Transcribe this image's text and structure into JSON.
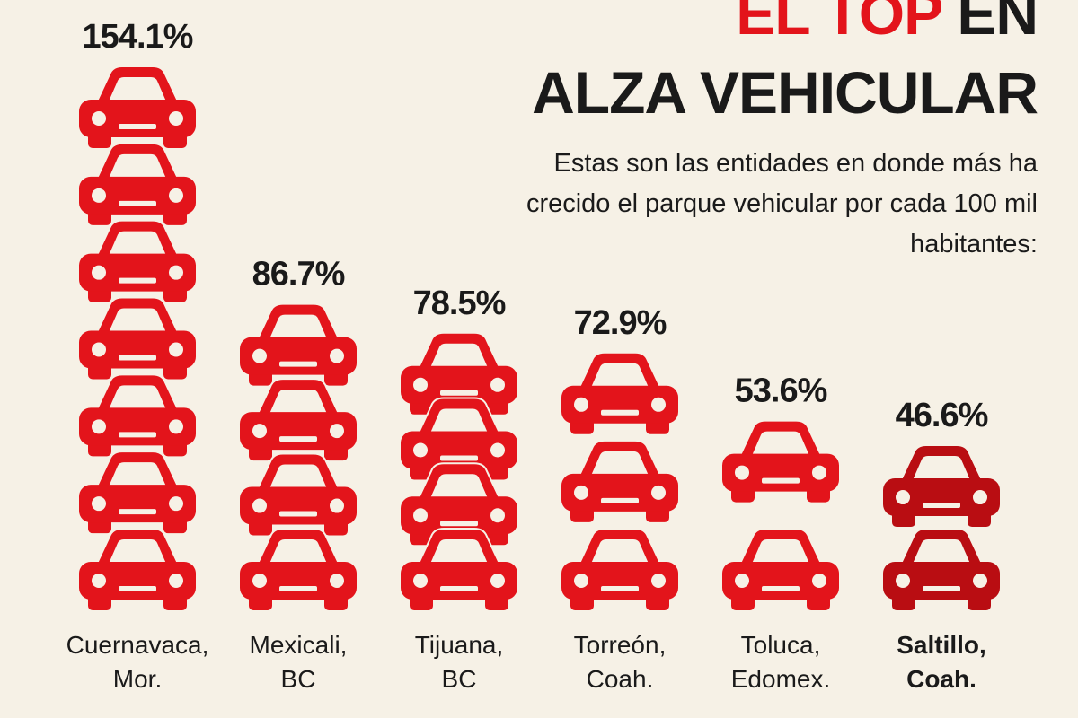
{
  "chart_data": {
    "type": "pictogram",
    "title": [
      "EL TOP",
      "EN",
      "ALZA VEHICULAR"
    ],
    "subtitle": "Estas son las entidades en donde más ha crecido el parque vehicular por cada 100 mil habitantes:",
    "categories": [
      "Cuernavaca,\nMor.",
      "Mexicali,\nBC",
      "Tijuana,\nBC",
      "Torreón,\nCoah.",
      "Toluca,\nEdomex.",
      "Saltillo,\nCoah."
    ],
    "values": [
      154.1,
      86.7,
      78.5,
      72.9,
      53.6,
      46.6
    ],
    "value_labels": [
      "154.1%",
      "86.7%",
      "78.5%",
      "72.9%",
      "53.6%",
      "46.6%"
    ],
    "colors": [
      "#e3141b",
      "#e3141b",
      "#e3141b",
      "#e3141b",
      "#e3141b",
      "#b90d12"
    ],
    "highlight_index": 5
  }
}
